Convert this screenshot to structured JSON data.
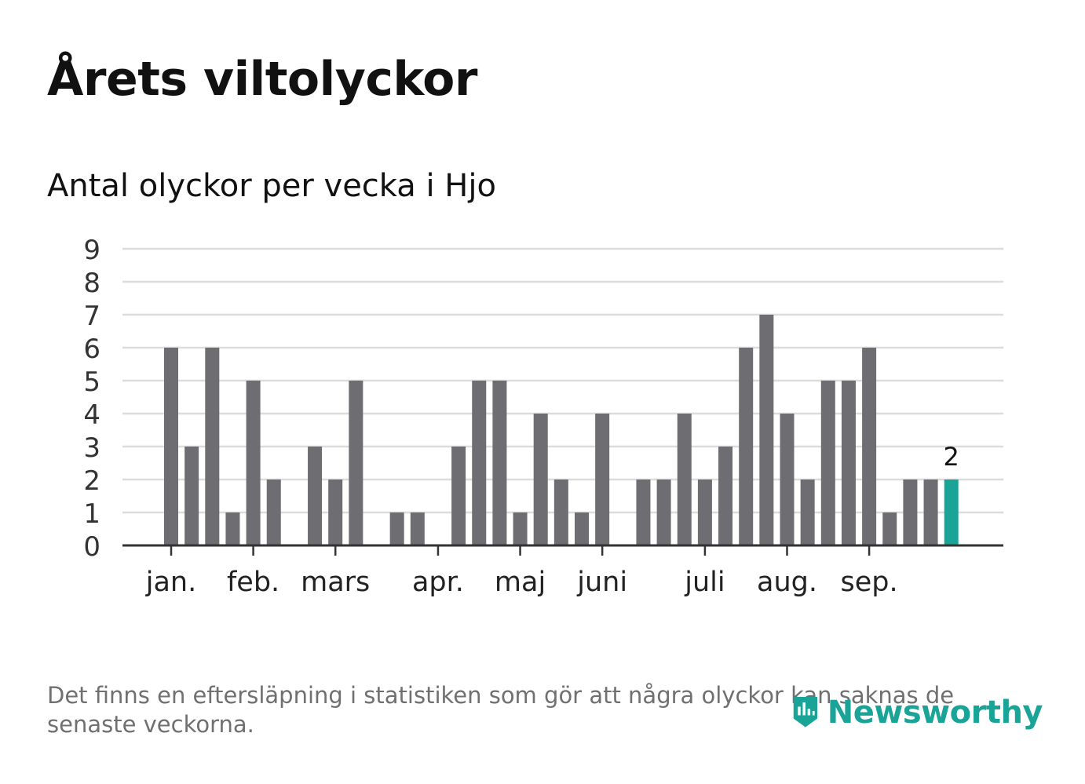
{
  "title": "Årets viltolyckor",
  "subtitle": "Antal olyckor per vecka i Hjo",
  "footnote": "Det finns en eftersläpning i statistiken som gör att några olyckor kan saknas de senaste veckorna.",
  "logo": {
    "text": "Newsworthy",
    "icon": "newsworthy-logo-icon"
  },
  "colors": {
    "bar": "#6d6d72",
    "highlight": "#19a497",
    "grid": "#dcdcdc",
    "axis": "#333333",
    "text": "#111111"
  },
  "chart_data": {
    "type": "bar",
    "title": "Antal olyckor per vecka i Hjo",
    "xlabel": "",
    "ylabel": "",
    "ylim": [
      0,
      9
    ],
    "yticks": [
      0,
      1,
      2,
      3,
      4,
      5,
      6,
      7,
      8,
      9
    ],
    "grid": true,
    "weeks": [
      1,
      2,
      3,
      4,
      5,
      6,
      7,
      8,
      9,
      10,
      11,
      12,
      13,
      14,
      15,
      16,
      17,
      18,
      19,
      20,
      21,
      22,
      23,
      24,
      25,
      26,
      27,
      28,
      29,
      30,
      31,
      32,
      33,
      34,
      35,
      36,
      37,
      38,
      39,
      40,
      41,
      42,
      43
    ],
    "values": [
      6,
      3,
      6,
      1,
      5,
      2,
      0,
      3,
      2,
      5,
      0,
      1,
      1,
      0,
      3,
      5,
      5,
      1,
      4,
      2,
      1,
      4,
      0,
      2,
      2,
      4,
      2,
      3,
      6,
      7,
      4,
      2,
      5,
      5,
      6,
      1,
      2,
      2,
      2,
      null,
      null,
      null,
      null
    ],
    "highlight_index": 38,
    "highlight_label": "2",
    "month_labels": [
      {
        "label": "jan.",
        "week": 1
      },
      {
        "label": "feb.",
        "week": 5
      },
      {
        "label": "mars",
        "week": 9
      },
      {
        "label": "apr.",
        "week": 14
      },
      {
        "label": "maj",
        "week": 18
      },
      {
        "label": "juni",
        "week": 22
      },
      {
        "label": "juli",
        "week": 27
      },
      {
        "label": "aug.",
        "week": 31
      },
      {
        "label": "sep.",
        "week": 35
      }
    ]
  }
}
